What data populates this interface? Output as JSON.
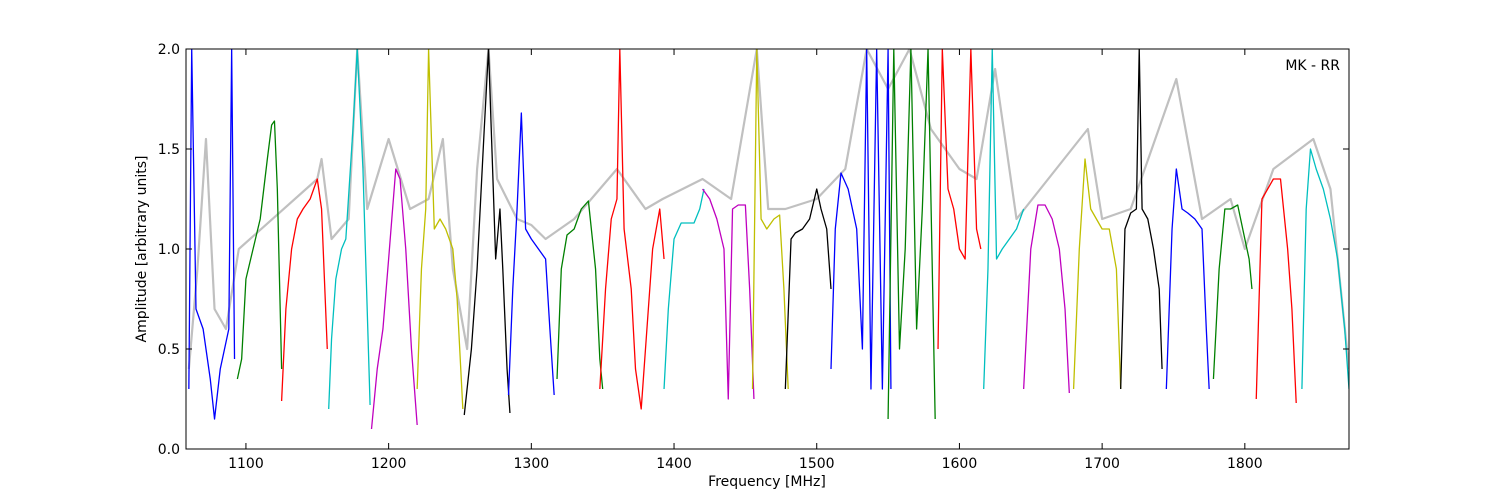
{
  "chart_data": {
    "type": "line",
    "xlabel": "Frequency [MHz]",
    "ylabel": "Amplitude [arbitrary units]",
    "annotation": "MK - RR",
    "xlim": [
      1058,
      1873
    ],
    "ylim": [
      0,
      2
    ],
    "xticks": [
      1100,
      1200,
      1300,
      1400,
      1500,
      1600,
      1700,
      1800
    ],
    "yticks": [
      {
        "value": 0,
        "label": "0.0"
      },
      {
        "value": 0.5,
        "label": "0.5"
      },
      {
        "value": 1,
        "label": "1.0"
      },
      {
        "value": 1.5,
        "label": "1.5"
      },
      {
        "value": 2,
        "label": "2.0"
      }
    ],
    "series": [
      {
        "color": "#c0c0c0",
        "x": [
          1060,
          1066,
          1072,
          1078,
          1086,
          1095,
          1150,
          1153,
          1160,
          1172,
          1178,
          1185,
          1200,
          1215,
          1228,
          1238,
          1245,
          1255,
          1262,
          1270,
          1276,
          1290,
          1300,
          1310,
          1330,
          1360,
          1380,
          1392,
          1420,
          1440,
          1458,
          1466,
          1478,
          1500,
          1520,
          1535,
          1550,
          1565,
          1580,
          1600,
          1612,
          1625,
          1640,
          1690,
          1700,
          1720,
          1752,
          1770,
          1790,
          1800,
          1820,
          1848,
          1860,
          1873
        ],
        "values": [
          0.4,
          0.9,
          1.55,
          0.7,
          0.6,
          1.0,
          1.35,
          1.45,
          1.05,
          1.15,
          2.0,
          1.2,
          1.55,
          1.2,
          1.25,
          1.55,
          0.9,
          0.5,
          1.4,
          2.0,
          1.35,
          1.15,
          1.12,
          1.05,
          1.15,
          1.4,
          1.2,
          1.25,
          1.35,
          1.25,
          2.0,
          1.2,
          1.2,
          1.25,
          1.4,
          2.0,
          1.8,
          2.0,
          1.6,
          1.4,
          1.35,
          1.9,
          1.15,
          1.6,
          1.15,
          1.2,
          1.85,
          1.15,
          1.25,
          1.0,
          1.4,
          1.55,
          1.3,
          0.4
        ]
      },
      {
        "color": "#0000ff",
        "x": [
          1060,
          1062,
          1065,
          1070,
          1075,
          1078,
          1082,
          1085,
          1088,
          1090,
          1092
        ],
        "values": [
          0.3,
          2.0,
          0.7,
          0.6,
          0.35,
          0.15,
          0.4,
          0.5,
          0.6,
          2.0,
          0.45
        ]
      },
      {
        "color": "#008000",
        "x": [
          1094,
          1097,
          1100,
          1105,
          1110,
          1115,
          1118,
          1120,
          1122,
          1125
        ],
        "values": [
          0.35,
          0.45,
          0.85,
          1.0,
          1.15,
          1.45,
          1.62,
          1.64,
          1.3,
          0.4
        ]
      },
      {
        "color": "#ff0000",
        "x": [
          1125,
          1128,
          1132,
          1136,
          1140,
          1145,
          1150,
          1153,
          1157
        ],
        "values": [
          0.24,
          0.7,
          1.0,
          1.15,
          1.2,
          1.25,
          1.35,
          1.2,
          0.5
        ]
      },
      {
        "color": "#00bfbf",
        "x": [
          1158,
          1160,
          1163,
          1167,
          1170,
          1175,
          1178,
          1182,
          1187
        ],
        "values": [
          0.2,
          0.55,
          0.85,
          1.0,
          1.05,
          1.6,
          2.0,
          1.4,
          0.22
        ]
      },
      {
        "color": "#bf00bf",
        "x": [
          1188,
          1192,
          1196,
          1200,
          1205,
          1208,
          1212,
          1216,
          1220
        ],
        "values": [
          0.1,
          0.4,
          0.6,
          0.95,
          1.4,
          1.35,
          1.0,
          0.5,
          0.12
        ]
      },
      {
        "color": "#bfbf00",
        "x": [
          1220,
          1223,
          1226,
          1228,
          1232,
          1236,
          1240,
          1245,
          1248,
          1252
        ],
        "values": [
          0.3,
          0.9,
          1.2,
          2.0,
          1.1,
          1.15,
          1.1,
          1.0,
          0.75,
          0.2
        ]
      },
      {
        "color": "#000000",
        "x": [
          1253,
          1258,
          1262,
          1267,
          1270,
          1275,
          1278,
          1280,
          1283,
          1285
        ],
        "values": [
          0.17,
          0.5,
          0.9,
          1.6,
          2.0,
          0.95,
          1.2,
          0.9,
          0.4,
          0.18
        ]
      },
      {
        "color": "#0000ff",
        "x": [
          1284,
          1287,
          1290,
          1293,
          1296,
          1300,
          1305,
          1310,
          1313,
          1316
        ],
        "values": [
          0.27,
          0.8,
          1.2,
          1.68,
          1.1,
          1.05,
          1.0,
          0.95,
          0.6,
          0.27
        ]
      },
      {
        "color": "#008000",
        "x": [
          1318,
          1321,
          1325,
          1330,
          1335,
          1340,
          1345,
          1348,
          1350
        ],
        "values": [
          0.35,
          0.9,
          1.07,
          1.1,
          1.2,
          1.24,
          0.9,
          0.45,
          0.3
        ]
      },
      {
        "color": "#ff0000",
        "x": [
          1348,
          1352,
          1356,
          1360,
          1362,
          1365,
          1370,
          1373,
          1377,
          1380,
          1385,
          1390,
          1393
        ],
        "values": [
          0.3,
          0.8,
          1.15,
          1.25,
          2.0,
          1.1,
          0.8,
          0.4,
          0.2,
          0.5,
          1.0,
          1.2,
          0.95
        ]
      },
      {
        "color": "#00bfbf",
        "x": [
          1393,
          1396,
          1400,
          1405,
          1410,
          1414,
          1418,
          1421
        ],
        "values": [
          0.3,
          0.7,
          1.05,
          1.13,
          1.13,
          1.13,
          1.2,
          1.3
        ]
      },
      {
        "color": "#bf00bf",
        "x": [
          1420,
          1425,
          1430,
          1435,
          1438,
          1441,
          1445,
          1450,
          1453,
          1456
        ],
        "values": [
          1.3,
          1.25,
          1.15,
          1.0,
          0.25,
          1.2,
          1.22,
          1.22,
          0.8,
          0.25
        ]
      },
      {
        "color": "#bfbf00",
        "x": [
          1455,
          1458,
          1461,
          1465,
          1470,
          1474,
          1477,
          1480
        ],
        "values": [
          0.3,
          2.0,
          1.15,
          1.1,
          1.15,
          1.17,
          0.8,
          0.3
        ]
      },
      {
        "color": "#000000",
        "x": [
          1478,
          1482,
          1485,
          1490,
          1495,
          1500,
          1503,
          1507,
          1510
        ],
        "values": [
          0.3,
          1.05,
          1.08,
          1.1,
          1.15,
          1.3,
          1.2,
          1.1,
          0.8
        ]
      },
      {
        "color": "#0000ff",
        "x": [
          1510,
          1513,
          1517,
          1522,
          1528,
          1532,
          1535,
          1538,
          1542,
          1546,
          1550,
          1552
        ],
        "values": [
          0.4,
          1.1,
          1.38,
          1.3,
          1.1,
          0.5,
          2.0,
          0.3,
          2.0,
          0.3,
          2.0,
          0.3
        ]
      },
      {
        "color": "#008000",
        "x": [
          1550,
          1554,
          1558,
          1562,
          1566,
          1570,
          1574,
          1578,
          1583
        ],
        "values": [
          0.15,
          2.0,
          0.5,
          1.0,
          2.0,
          0.6,
          1.2,
          2.0,
          0.15
        ]
      },
      {
        "color": "#ff0000",
        "x": [
          1585,
          1588,
          1592,
          1596,
          1600,
          1604,
          1608,
          1612,
          1615
        ],
        "values": [
          0.5,
          2.0,
          1.3,
          1.2,
          1.0,
          0.95,
          2.0,
          1.1,
          1.0
        ]
      },
      {
        "color": "#00bfbf",
        "x": [
          1617,
          1620,
          1623,
          1626,
          1630,
          1635,
          1640,
          1645
        ],
        "values": [
          0.3,
          0.9,
          2.0,
          0.95,
          1.0,
          1.05,
          1.1,
          1.2
        ]
      },
      {
        "color": "#bf00bf",
        "x": [
          1645,
          1650,
          1655,
          1660,
          1665,
          1670,
          1674,
          1677
        ],
        "values": [
          0.3,
          1.0,
          1.22,
          1.22,
          1.15,
          1.0,
          0.7,
          0.28
        ]
      },
      {
        "color": "#bfbf00",
        "x": [
          1680,
          1684,
          1688,
          1692,
          1696,
          1700,
          1705,
          1710,
          1713
        ],
        "values": [
          0.3,
          1.0,
          1.45,
          1.2,
          1.15,
          1.1,
          1.1,
          0.9,
          0.3
        ]
      },
      {
        "color": "#000000",
        "x": [
          1713,
          1716,
          1720,
          1724,
          1726,
          1728,
          1732,
          1736,
          1740,
          1742
        ],
        "values": [
          0.3,
          1.1,
          1.18,
          1.2,
          2.0,
          1.2,
          1.15,
          1.0,
          0.8,
          0.4
        ]
      },
      {
        "color": "#0000ff",
        "x": [
          1745,
          1749,
          1752,
          1756,
          1760,
          1765,
          1770,
          1773,
          1775
        ],
        "values": [
          0.3,
          1.1,
          1.4,
          1.2,
          1.18,
          1.15,
          1.1,
          0.6,
          0.3
        ]
      },
      {
        "color": "#008000",
        "x": [
          1778,
          1782,
          1786,
          1790,
          1795,
          1800,
          1803,
          1805
        ],
        "values": [
          0.35,
          0.9,
          1.2,
          1.2,
          1.22,
          1.05,
          0.95,
          0.8
        ]
      },
      {
        "color": "#ff0000",
        "x": [
          1808,
          1812,
          1816,
          1820,
          1825,
          1830,
          1833,
          1836
        ],
        "values": [
          0.25,
          1.25,
          1.3,
          1.35,
          1.35,
          1.0,
          0.7,
          0.23
        ]
      },
      {
        "color": "#00bfbf",
        "x": [
          1840,
          1843,
          1846,
          1850,
          1855,
          1860,
          1865,
          1870,
          1873
        ],
        "values": [
          0.3,
          1.2,
          1.5,
          1.4,
          1.3,
          1.15,
          0.95,
          0.6,
          0.3
        ]
      }
    ]
  }
}
